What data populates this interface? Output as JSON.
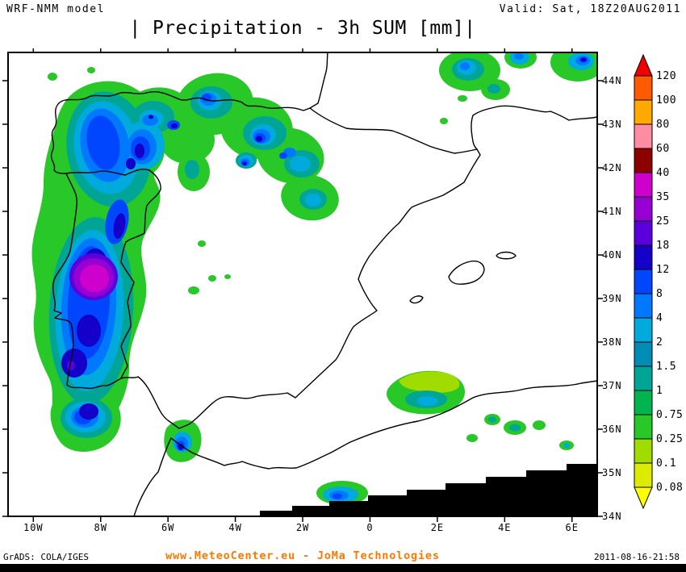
{
  "header": {
    "model": "WRF-NMM model",
    "valid": "Valid: Sat, 18Z20AUG2011",
    "title": "| Precipitation - 3h SUM [mm]|"
  },
  "map": {
    "lat_labels": [
      "44N",
      "43N",
      "42N",
      "41N",
      "40N",
      "39N",
      "38N",
      "37N",
      "36N",
      "35N",
      "34N"
    ],
    "lon_labels": [
      "10W",
      "8W",
      "6W",
      "4W",
      "2W",
      "0",
      "2E",
      "4E",
      "6E"
    ]
  },
  "colorbar": {
    "unit": "mm",
    "levels_top_to_bottom": [
      "120",
      "100",
      "80",
      "60",
      "40",
      "35",
      "25",
      "18",
      "12",
      "8",
      "4",
      "2",
      "1.5",
      "1",
      "0.75",
      "0.25",
      "0.1",
      "0.08"
    ],
    "colors_top_to_bottom": [
      "#f00000",
      "#ff5a00",
      "#ffaa00",
      "#ff8ca0",
      "#8c0000",
      "#cd00cd",
      "#9600d2",
      "#5a00dc",
      "#1400c8",
      "#0046ff",
      "#0078ff",
      "#00aadc",
      "#008cb4",
      "#00a596",
      "#00b450",
      "#28c828",
      "#a0dc00",
      "#dcec00",
      "#ffff00"
    ]
  },
  "footer": {
    "grads": "GrADS: COLA/IGES",
    "center": "www.MeteoCenter.eu  -  JoMa Technologies",
    "timestamp": "2011-08-16-21:58",
    "accent_color": "#ff7800"
  }
}
